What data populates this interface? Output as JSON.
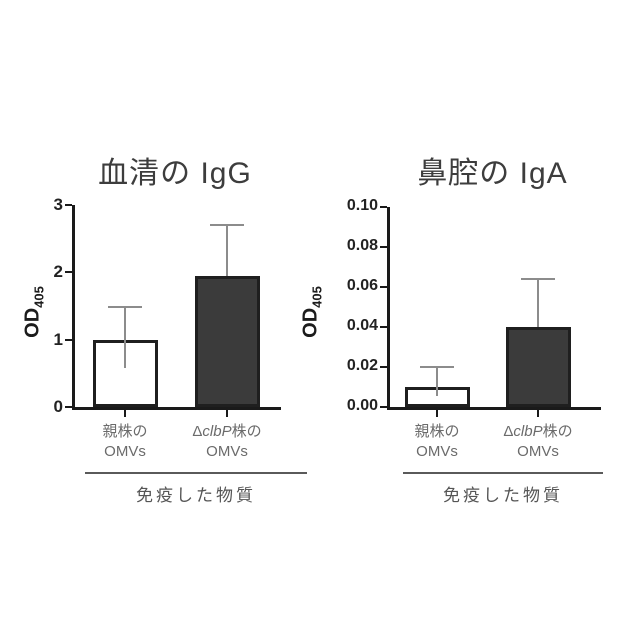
{
  "colors": {
    "background": "#ffffff",
    "axis": "#1a1a1a",
    "bar_outline": "#1f1f1f",
    "white_bar_fill": "#ffffff",
    "dark_bar_fill": "#3b3b3b",
    "error_bar": "#8c8c8c",
    "title_text": "#3d3d3d",
    "tick_text": "#222222",
    "category_text": "#6b6b6b",
    "group_label_text": "#555555"
  },
  "chart_data": [
    {
      "type": "bar",
      "title": "血清の IgG",
      "ylabel": "OD405",
      "ylabel_main": "OD",
      "ylabel_sub": "405",
      "categories": [
        "親株の OMVs",
        "ΔclbP株の OMVs"
      ],
      "values": [
        1.0,
        1.95
      ],
      "errors_upper": [
        0.48,
        0.75
      ],
      "ylim": [
        0,
        3
      ],
      "yticks": [
        0,
        1,
        2,
        3
      ],
      "ytick_labels": [
        "0",
        "1",
        "2",
        "3"
      ],
      "bar_fills": [
        "#ffffff",
        "#3b3b3b"
      ],
      "xlabel_group": "免疫した物質",
      "grid": false,
      "legend": "none",
      "category_lines": [
        {
          "line1": [
            {
              "text": "親株の"
            }
          ],
          "line2": [
            {
              "text": "OMVs"
            }
          ]
        },
        {
          "line1": [
            {
              "text": "Δ"
            },
            {
              "text": "clbP",
              "italic": true
            },
            {
              "text": "株の"
            }
          ],
          "line2": [
            {
              "text": "OMVs"
            }
          ]
        }
      ]
    },
    {
      "type": "bar",
      "title": "鼻腔の IgA",
      "ylabel": "OD405",
      "ylabel_main": "OD",
      "ylabel_sub": "405",
      "categories": [
        "親株の OMVs",
        "ΔclbP株の OMVs"
      ],
      "values": [
        0.01,
        0.04
      ],
      "errors_upper": [
        0.01,
        0.024
      ],
      "ylim": [
        0,
        0.1
      ],
      "yticks": [
        0,
        0.02,
        0.04,
        0.06,
        0.08,
        0.1
      ],
      "ytick_labels": [
        "0.00",
        "0.02",
        "0.04",
        "0.06",
        "0.08",
        "0.10"
      ],
      "bar_fills": [
        "#ffffff",
        "#3b3b3b"
      ],
      "xlabel_group": "免疫した物質",
      "grid": false,
      "legend": "none",
      "category_lines": [
        {
          "line1": [
            {
              "text": "親株の"
            }
          ],
          "line2": [
            {
              "text": "OMVs"
            }
          ]
        },
        {
          "line1": [
            {
              "text": "Δ"
            },
            {
              "text": "clbP",
              "italic": true
            },
            {
              "text": "株の"
            }
          ],
          "line2": [
            {
              "text": "OMVs"
            }
          ]
        }
      ]
    }
  ]
}
